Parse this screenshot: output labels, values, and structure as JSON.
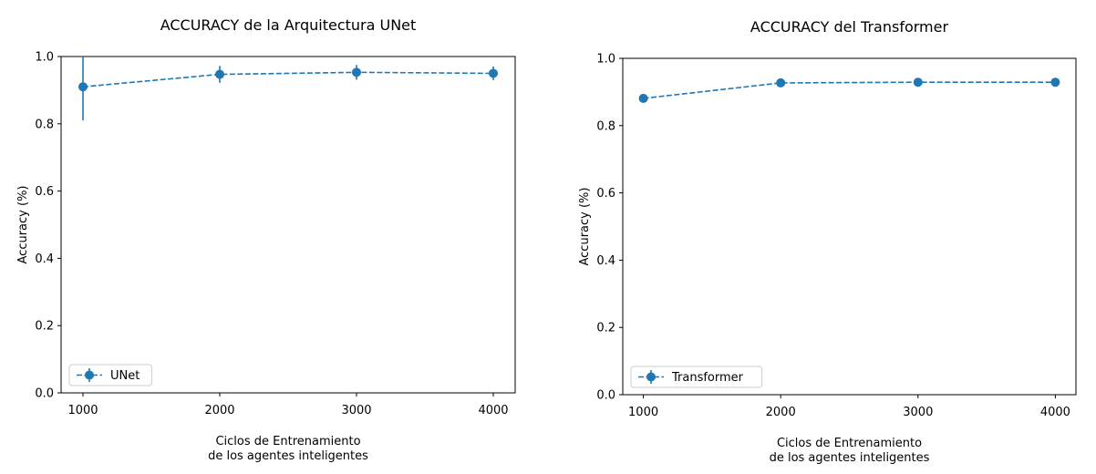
{
  "chart_data": [
    {
      "type": "line",
      "title": "ACCURACY de la Arquitectura UNet",
      "xlabel_lines": [
        "Ciclos de Entrenamiento",
        "de los agentes inteligentes"
      ],
      "ylabel": "Accuracy (%)",
      "x": [
        1000,
        2000,
        3000,
        4000
      ],
      "xticks": [
        "1000",
        "2000",
        "3000",
        "4000"
      ],
      "yticks": [
        "0.0",
        "0.2",
        "0.4",
        "0.6",
        "0.8",
        "1.0"
      ],
      "xlim": [
        840,
        4160
      ],
      "ylim": [
        0,
        1.0
      ],
      "grid": false,
      "legend_position": "lower-left",
      "series": [
        {
          "name": "UNet",
          "color": "#1f77b4",
          "linestyle": "dashed",
          "marker": "circle",
          "values": [
            0.91,
            0.947,
            0.953,
            0.95
          ],
          "error": [
            0.1,
            0.025,
            0.022,
            0.02
          ]
        }
      ]
    },
    {
      "type": "line",
      "title": "ACCURACY del Transformer",
      "xlabel_lines": [
        "Ciclos de Entrenamiento",
        "de los agentes inteligentes"
      ],
      "ylabel": "Accuracy (%)",
      "x": [
        1000,
        2000,
        3000,
        4000
      ],
      "xticks": [
        "1000",
        "2000",
        "3000",
        "4000"
      ],
      "yticks": [
        "0.0",
        "0.2",
        "0.4",
        "0.6",
        "0.8",
        "1.0"
      ],
      "xlim": [
        850,
        4150
      ],
      "ylim": [
        0,
        1.0
      ],
      "grid": false,
      "legend_position": "lower-left",
      "series": [
        {
          "name": "Transformer",
          "color": "#1f77b4",
          "linestyle": "dashed",
          "marker": "circle",
          "values": [
            0.881,
            0.927,
            0.929,
            0.929
          ],
          "error": [
            0.004,
            0.004,
            0.003,
            0.003
          ]
        }
      ]
    }
  ]
}
